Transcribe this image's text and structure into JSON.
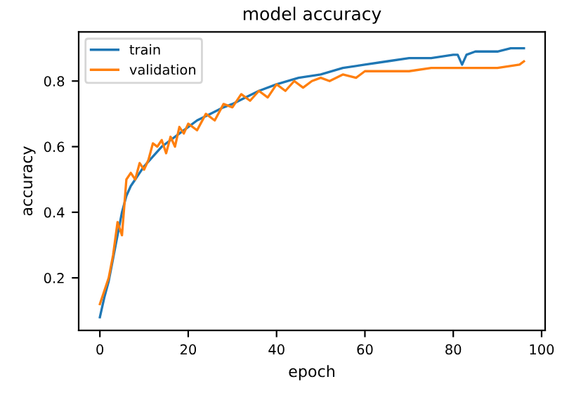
{
  "chart_data": {
    "type": "line",
    "title": "model accuracy",
    "xlabel": "epoch",
    "ylabel": "accuracy",
    "xlim": [
      -4.8,
      100.8
    ],
    "xticks": [
      0,
      20,
      40,
      60,
      80,
      100
    ],
    "ylim": [
      0.04,
      0.95
    ],
    "yticks": [
      0.2,
      0.4,
      0.6,
      0.8
    ],
    "legend": "top left",
    "grid": false,
    "marker": "none",
    "line_style": "solid",
    "series": [
      {
        "name": "train",
        "color": "#1f77b4",
        "x": [
          0,
          1,
          2,
          3,
          4,
          5,
          6,
          7,
          8,
          9,
          10,
          12,
          14,
          16,
          18,
          20,
          22,
          25,
          28,
          30,
          33,
          36,
          40,
          45,
          50,
          55,
          60,
          65,
          70,
          75,
          80,
          81,
          82,
          83,
          85,
          90,
          93,
          96
        ],
        "values": [
          0.08,
          0.14,
          0.19,
          0.26,
          0.33,
          0.4,
          0.45,
          0.48,
          0.5,
          0.52,
          0.54,
          0.57,
          0.6,
          0.62,
          0.64,
          0.66,
          0.68,
          0.7,
          0.72,
          0.73,
          0.75,
          0.77,
          0.79,
          0.81,
          0.82,
          0.84,
          0.85,
          0.86,
          0.87,
          0.87,
          0.88,
          0.88,
          0.85,
          0.88,
          0.89,
          0.89,
          0.9,
          0.9
        ]
      },
      {
        "name": "validation",
        "color": "#ff7f0e",
        "x": [
          0,
          1,
          2,
          3,
          4,
          5,
          6,
          7,
          8,
          9,
          10,
          11,
          12,
          13,
          14,
          15,
          16,
          17,
          18,
          19,
          20,
          22,
          24,
          26,
          28,
          30,
          32,
          34,
          36,
          38,
          40,
          42,
          44,
          46,
          48,
          50,
          52,
          55,
          58,
          60,
          65,
          70,
          75,
          80,
          85,
          90,
          95,
          96
        ],
        "values": [
          0.12,
          0.16,
          0.2,
          0.27,
          0.37,
          0.33,
          0.5,
          0.52,
          0.5,
          0.55,
          0.53,
          0.56,
          0.61,
          0.6,
          0.62,
          0.58,
          0.63,
          0.6,
          0.66,
          0.64,
          0.67,
          0.65,
          0.7,
          0.68,
          0.73,
          0.72,
          0.76,
          0.74,
          0.77,
          0.75,
          0.79,
          0.77,
          0.8,
          0.78,
          0.8,
          0.81,
          0.8,
          0.82,
          0.81,
          0.83,
          0.83,
          0.83,
          0.84,
          0.84,
          0.84,
          0.84,
          0.85,
          0.86
        ]
      }
    ]
  }
}
